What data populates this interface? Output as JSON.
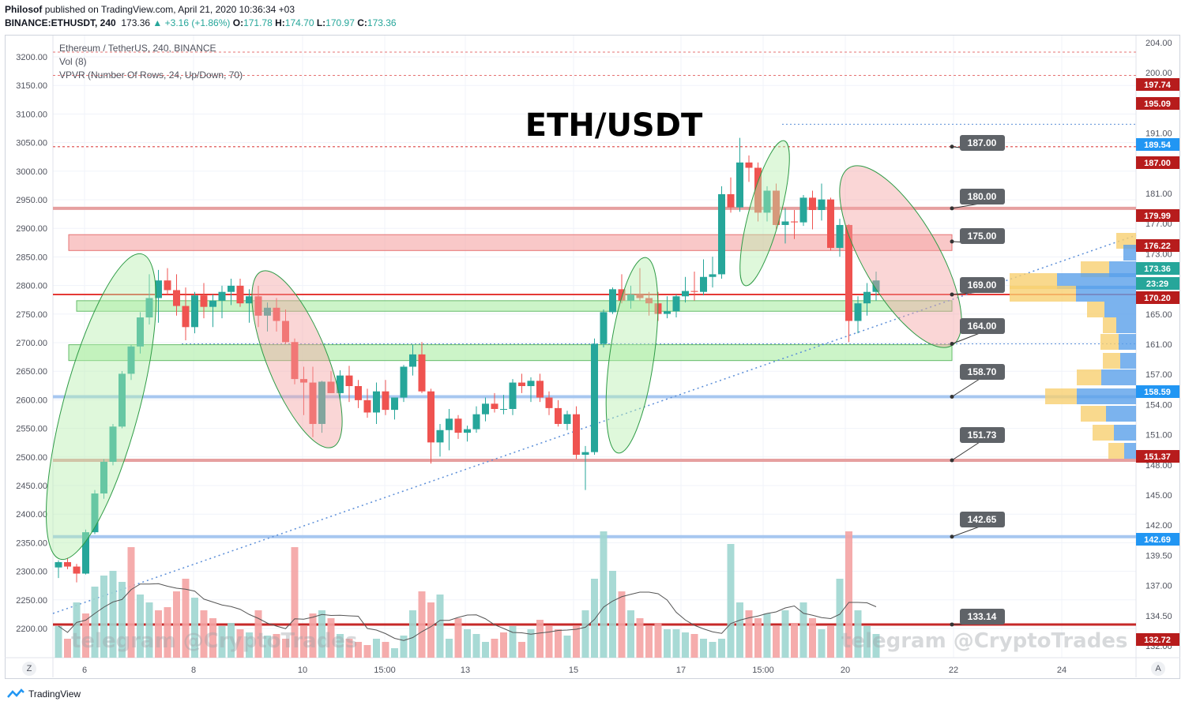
{
  "header": {
    "publisher": "Philosof",
    "published_text": "published on TradingView.com, April 21, 2020 10:36:34 +03",
    "symbol": "BINANCE:ETHUSDT, 240",
    "last": "173.36",
    "change": "+3.16 (+1.86%)",
    "o_label": "O:",
    "o": "171.78",
    "h_label": "H:",
    "h": "174.70",
    "l_label": "L:",
    "l": "170.97",
    "c_label": "C:",
    "c": "173.36"
  },
  "legend": {
    "line1": "Ethereum / TetherUS, 240, BINANCE",
    "line2": "Vol (8)",
    "line3": "VPVR (Number Of Rows, 24, Up/Down, 70)"
  },
  "chart_title": "ETH/USDT",
  "watermark": "telegram @CryptoTrades",
  "footer": {
    "brand": "TradingView"
  },
  "corner": {
    "left": "Z",
    "right": "A"
  },
  "colors": {
    "up": "#26a69a",
    "down": "#ef5350",
    "blue": "#2196f3"
  },
  "chart_data": {
    "type": "candlestick",
    "right_axis_ticks": [
      "204.00",
      "200.00",
      "196.00",
      "191.00",
      "186.00",
      "181.00",
      "177.00",
      "173.00",
      "169.00",
      "165.00",
      "161.00",
      "157.00",
      "154.00",
      "151.00",
      "148.00",
      "145.00",
      "142.00",
      "139.50",
      "137.00",
      "134.50",
      "132.00"
    ],
    "left_axis_ticks": [
      "3200.00",
      "3150.00",
      "3100.00",
      "3050.00",
      "3000.00",
      "2950.00",
      "2900.00",
      "2850.00",
      "2800.00",
      "2750.00",
      "2700.00",
      "2650.00",
      "2600.00",
      "2550.00",
      "2500.00",
      "2450.00",
      "2400.00",
      "2350.00",
      "2300.00",
      "2250.00",
      "2200.00"
    ],
    "x_ticks": [
      "6",
      "8",
      "10",
      "15:00",
      "13",
      "15",
      "17",
      "15:00",
      "20",
      "22",
      "24"
    ],
    "price_tags": [
      {
        "label": "197.74",
        "kind": "red"
      },
      {
        "label": "195.09",
        "kind": "red"
      },
      {
        "label": "189.54",
        "kind": "blue"
      },
      {
        "label": "187.00",
        "kind": "red"
      },
      {
        "label": "179.99",
        "kind": "red"
      },
      {
        "label": "176.22",
        "kind": "red"
      },
      {
        "label": "173.36",
        "kind": "green"
      },
      {
        "label": "23:29",
        "kind": "green"
      },
      {
        "label": "170.20",
        "kind": "red"
      },
      {
        "label": "158.59",
        "kind": "blue"
      },
      {
        "label": "151.37",
        "kind": "red"
      },
      {
        "label": "142.69",
        "kind": "blue"
      },
      {
        "label": "132.72",
        "kind": "red"
      }
    ],
    "callouts": [
      "187.00",
      "180.00",
      "175.00",
      "169.00",
      "164.00",
      "158.70",
      "151.73",
      "142.65",
      "133.14"
    ],
    "candles": [
      [
        139.2,
        140.0,
        138.0,
        139.8
      ],
      [
        139.8,
        140.3,
        139.0,
        139.3
      ],
      [
        139.3,
        139.6,
        137.5,
        138.5
      ],
      [
        138.5,
        143.5,
        138.4,
        143.2
      ],
      [
        143.2,
        148.0,
        143.0,
        147.6
      ],
      [
        147.6,
        151.5,
        147.0,
        151.2
      ],
      [
        151.2,
        155.5,
        150.8,
        155.2
      ],
      [
        155.2,
        161.5,
        155.0,
        161.2
      ],
      [
        161.2,
        164.5,
        160.5,
        164.3
      ],
      [
        164.3,
        168.2,
        163.5,
        167.6
      ],
      [
        167.6,
        172.5,
        166.8,
        169.8
      ],
      [
        169.8,
        173.0,
        167.0,
        171.8
      ],
      [
        171.8,
        173.2,
        170.2,
        170.7
      ],
      [
        170.7,
        172.5,
        167.8,
        168.9
      ],
      [
        168.9,
        171.0,
        165.0,
        166.5
      ],
      [
        166.5,
        170.5,
        165.8,
        170.1
      ],
      [
        170.1,
        171.5,
        167.5,
        168.8
      ],
      [
        168.8,
        170.2,
        166.5,
        169.5
      ],
      [
        169.5,
        171.2,
        167.5,
        170.5
      ],
      [
        170.5,
        172.0,
        169.0,
        171.2
      ],
      [
        171.2,
        172.0,
        168.8,
        169.2
      ],
      [
        169.2,
        170.8,
        167.0,
        170.0
      ],
      [
        170.0,
        171.2,
        166.5,
        167.8
      ],
      [
        167.8,
        169.3,
        166.0,
        168.7
      ],
      [
        168.7,
        169.8,
        166.0,
        167.2
      ],
      [
        167.2,
        168.5,
        164.6,
        164.8
      ],
      [
        164.8,
        165.2,
        160.0,
        160.6
      ],
      [
        160.6,
        162.0,
        156.5,
        160.2
      ],
      [
        160.2,
        162.0,
        154.0,
        155.5
      ],
      [
        155.5,
        160.4,
        154.5,
        160.3
      ],
      [
        160.3,
        161.5,
        159.0,
        159.0
      ],
      [
        159.0,
        161.6,
        158.2,
        161.0
      ],
      [
        161.0,
        162.1,
        158.0,
        159.8
      ],
      [
        159.8,
        160.5,
        157.3,
        158.2
      ],
      [
        158.2,
        159.5,
        156.2,
        156.8
      ],
      [
        156.8,
        160.2,
        155.5,
        159.2
      ],
      [
        159.2,
        160.5,
        156.5,
        157.1
      ],
      [
        157.1,
        158.5,
        156.0,
        158.5
      ],
      [
        158.5,
        162.2,
        158.0,
        162.0
      ],
      [
        162.0,
        164.5,
        161.0,
        163.4
      ],
      [
        163.4,
        164.8,
        159.0,
        159.2
      ],
      [
        159.2,
        159.5,
        151.0,
        153.4
      ],
      [
        153.4,
        155.5,
        151.8,
        154.8
      ],
      [
        154.8,
        157.2,
        152.5,
        156.1
      ],
      [
        156.1,
        156.5,
        153.8,
        154.5
      ],
      [
        154.5,
        155.3,
        153.5,
        154.9
      ],
      [
        154.9,
        157.5,
        154.5,
        156.6
      ],
      [
        156.6,
        158.5,
        155.8,
        157.8
      ],
      [
        157.8,
        159.0,
        156.8,
        157.2
      ],
      [
        157.2,
        158.8,
        156.6,
        157.2
      ],
      [
        157.2,
        160.6,
        156.5,
        160.2
      ],
      [
        160.2,
        161.2,
        159.0,
        159.8
      ],
      [
        159.8,
        160.8,
        158.0,
        160.4
      ],
      [
        160.4,
        161.2,
        158.0,
        158.5
      ],
      [
        158.5,
        159.2,
        156.5,
        157.3
      ],
      [
        157.3,
        158.2,
        155.2,
        155.5
      ],
      [
        155.5,
        157.0,
        154.8,
        156.6
      ],
      [
        156.6,
        157.5,
        151.5,
        152.0
      ],
      [
        152.0,
        153.0,
        148.0,
        152.3
      ],
      [
        152.3,
        165.2,
        152.0,
        164.6
      ],
      [
        164.6,
        168.5,
        164.2,
        168.2
      ],
      [
        168.2,
        171.0,
        168.0,
        170.8
      ],
      [
        170.8,
        172.5,
        169.2,
        169.5
      ],
      [
        169.5,
        171.2,
        168.6,
        170.2
      ],
      [
        170.2,
        173.2,
        169.5,
        169.8
      ],
      [
        169.8,
        170.5,
        167.8,
        169.2
      ],
      [
        169.2,
        170.5,
        167.2,
        168.0
      ],
      [
        168.0,
        170.0,
        167.5,
        168.3
      ],
      [
        168.3,
        170.2,
        167.6,
        170.0
      ],
      [
        170.0,
        172.2,
        169.3,
        170.6
      ],
      [
        170.6,
        172.8,
        169.5,
        170.5
      ],
      [
        170.5,
        174.2,
        170.1,
        172.2
      ],
      [
        172.2,
        174.5,
        171.0,
        172.5
      ],
      [
        172.5,
        182.5,
        172.0,
        181.6
      ],
      [
        181.6,
        183.5,
        179.5,
        180.1
      ],
      [
        180.1,
        188.0,
        179.6,
        185.2
      ],
      [
        185.2,
        186.0,
        183.0,
        184.6
      ],
      [
        184.6,
        185.2,
        178.5,
        179.5
      ],
      [
        179.5,
        182.5,
        178.5,
        182.0
      ],
      [
        182.0,
        182.8,
        177.6,
        178.1
      ],
      [
        178.1,
        180.0,
        176.0,
        178.5
      ],
      [
        178.5,
        179.8,
        176.5,
        178.4
      ],
      [
        178.4,
        181.5,
        178.0,
        181.2
      ],
      [
        181.2,
        182.0,
        177.6,
        179.8
      ],
      [
        179.8,
        182.8,
        178.6,
        181.0
      ],
      [
        181.0,
        181.2,
        175.2,
        175.5
      ],
      [
        175.5,
        178.8,
        174.5,
        178.1
      ],
      [
        178.1,
        178.2,
        164.8,
        167.2
      ],
      [
        167.2,
        170.0,
        165.8,
        169.2
      ],
      [
        169.2,
        171.5,
        167.8,
        170.5
      ],
      [
        170.5,
        172.8,
        169.5,
        171.8
      ]
    ],
    "volumes": [
      0.2,
      0.12,
      0.35,
      0.28,
      0.45,
      0.52,
      0.55,
      0.48,
      0.7,
      0.4,
      0.35,
      0.3,
      0.32,
      0.42,
      0.5,
      0.38,
      0.3,
      0.25,
      0.2,
      0.22,
      0.18,
      0.16,
      0.3,
      0.14,
      0.15,
      0.12,
      0.7,
      0.2,
      0.28,
      0.3,
      0.25,
      0.15,
      0.12,
      0.1,
      0.08,
      0.12,
      0.1,
      0.06,
      0.14,
      0.3,
      0.42,
      0.35,
      0.4,
      0.12,
      0.25,
      0.18,
      0.15,
      0.1,
      0.12,
      0.16,
      0.2,
      0.1,
      0.18,
      0.24,
      0.2,
      0.18,
      0.14,
      0.2,
      0.3,
      0.5,
      0.8,
      0.55,
      0.42,
      0.3,
      0.25,
      0.2,
      0.22,
      0.18,
      0.18,
      0.16,
      0.15,
      0.12,
      0.1,
      0.12,
      0.72,
      0.35,
      0.3,
      0.25,
      0.28,
      0.2,
      0.3,
      0.22,
      0.35,
      0.25,
      0.18,
      0.2,
      0.5,
      0.8,
      0.3,
      0.2,
      0.15
    ],
    "vol_up_down": [
      "u",
      "d",
      "u",
      "d",
      "u",
      "u",
      "u",
      "u",
      "d",
      "u",
      "u",
      "d",
      "d",
      "d",
      "d",
      "u",
      "d",
      "d",
      "u",
      "u",
      "d",
      "u",
      "d",
      "u",
      "d",
      "d",
      "d",
      "d",
      "d",
      "u",
      "d",
      "u",
      "d",
      "d",
      "d",
      "u",
      "d",
      "u",
      "u",
      "u",
      "d",
      "d",
      "u",
      "u",
      "d",
      "u",
      "u",
      "u",
      "d",
      "d",
      "u",
      "d",
      "u",
      "d",
      "d",
      "d",
      "u",
      "d",
      "u",
      "u",
      "u",
      "u",
      "d",
      "u",
      "d",
      "d",
      "d",
      "u",
      "u",
      "u",
      "d",
      "u",
      "u",
      "u",
      "u",
      "u",
      "d",
      "d",
      "u",
      "d",
      "u",
      "d",
      "u",
      "d",
      "u",
      "d",
      "u",
      "d",
      "u",
      "u",
      "u"
    ]
  }
}
